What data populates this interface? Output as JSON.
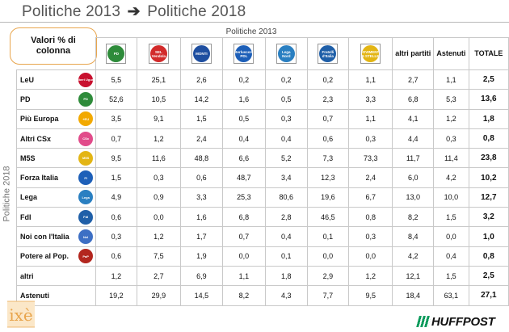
{
  "title": {
    "left": "Politiche 2013",
    "arrow": "➔",
    "right": "Politiche 2018"
  },
  "header_box": "Valori % di colonna",
  "column_group_label": "Politiche 2013",
  "side_label": "Politiche 2018",
  "columns": [
    {
      "key": "pd",
      "logo_text": "PD",
      "color": "#2e8b3a"
    },
    {
      "key": "sel",
      "logo_text": "SEL Vendola",
      "color": "#d22b2b"
    },
    {
      "key": "montl",
      "logo_text": "MONTI",
      "color": "#1f4fa0"
    },
    {
      "key": "pdl",
      "logo_text": "Berlusconi PDL",
      "color": "#1d5fb8"
    },
    {
      "key": "lega",
      "logo_text": "Lega Nord",
      "color": "#2a7fc1"
    },
    {
      "key": "fdi",
      "logo_text": "Fratelli d'Italia",
      "color": "#1f5fa8"
    },
    {
      "key": "m5s",
      "logo_text": "MOVIMENTO 5 STELLE",
      "color": "#e3b514"
    },
    {
      "key": "altri",
      "label": "altri partiti"
    },
    {
      "key": "astenuti",
      "label": "Astenuti"
    },
    {
      "key": "totale",
      "label": "TOTALE"
    }
  ],
  "chart_data": {
    "type": "table",
    "title": "Politiche 2013 ➔ Politiche 2018",
    "row_axis_label": "Politiche 2018",
    "column_axis_label": "Politiche 2013",
    "unit": "Valori % di colonna",
    "columns": [
      "PD",
      "SEL",
      "Scelta Civica (Monti)",
      "PDL",
      "Lega Nord",
      "Fratelli d'Italia",
      "M5S",
      "altri partiti",
      "Astenuti",
      "TOTALE"
    ],
    "rows": [
      {
        "label": "LeU",
        "logo_color": "#c8102e",
        "logo_text": "Liberi Uguali",
        "values": [
          "5,5",
          "25,1",
          "2,6",
          "0,2",
          "0,2",
          "0,2",
          "1,1",
          "2,7",
          "1,1",
          "2,5"
        ]
      },
      {
        "label": "PD",
        "logo_color": "#2e8b3a",
        "logo_text": "PD",
        "values": [
          "52,6",
          "10,5",
          "14,2",
          "1,6",
          "0,5",
          "2,3",
          "3,3",
          "6,8",
          "5,3",
          "13,6"
        ]
      },
      {
        "label": "Più Europa",
        "logo_color": "#f2a900",
        "logo_text": "+EU",
        "values": [
          "3,5",
          "9,1",
          "1,5",
          "0,5",
          "0,3",
          "0,7",
          "1,1",
          "4,1",
          "1,2",
          "1,8"
        ]
      },
      {
        "label": "Altri CSx",
        "logo_color": "#e14b8a",
        "logo_text": "CSx",
        "values": [
          "0,7",
          "1,2",
          "2,4",
          "0,4",
          "0,4",
          "0,6",
          "0,3",
          "4,4",
          "0,3",
          "0,8"
        ]
      },
      {
        "label": "M5S",
        "logo_color": "#e3b514",
        "logo_text": "M5S",
        "values": [
          "9,5",
          "11,6",
          "48,8",
          "6,6",
          "5,2",
          "7,3",
          "73,3",
          "11,7",
          "11,4",
          "23,8"
        ]
      },
      {
        "label": "Forza Italia",
        "logo_color": "#1d5fb8",
        "logo_text": "FI",
        "values": [
          "1,5",
          "0,3",
          "0,6",
          "48,7",
          "3,4",
          "12,3",
          "2,4",
          "6,0",
          "4,2",
          "10,2"
        ]
      },
      {
        "label": "Lega",
        "logo_color": "#2a7fc1",
        "logo_text": "Lega",
        "values": [
          "4,9",
          "0,9",
          "3,3",
          "25,3",
          "80,6",
          "19,6",
          "6,7",
          "13,0",
          "10,0",
          "12,7"
        ]
      },
      {
        "label": "FdI",
        "logo_color": "#1f5fa8",
        "logo_text": "FdI",
        "values": [
          "0,6",
          "0,0",
          "1,6",
          "6,8",
          "2,8",
          "46,5",
          "0,8",
          "8,2",
          "1,5",
          "3,2"
        ]
      },
      {
        "label": "Noi con l'Italia",
        "logo_color": "#3d6fc4",
        "logo_text": "NcI",
        "values": [
          "0,3",
          "1,2",
          "1,7",
          "0,7",
          "0,4",
          "0,1",
          "0,3",
          "8,4",
          "0,0",
          "1,0"
        ]
      },
      {
        "label": "Potere al Pop.",
        "logo_color": "#b3261e",
        "logo_text": "PaP",
        "values": [
          "0,6",
          "7,5",
          "1,9",
          "0,0",
          "0,1",
          "0,0",
          "0,0",
          "4,2",
          "0,4",
          "0,8"
        ]
      },
      {
        "label": "altri",
        "logo_color": "",
        "logo_text": "",
        "values": [
          "1,2",
          "2,7",
          "6,9",
          "1,1",
          "1,8",
          "2,9",
          "1,2",
          "12,1",
          "1,5",
          "2,5"
        ]
      },
      {
        "label": "Astenuti",
        "logo_color": "",
        "logo_text": "",
        "values": [
          "19,2",
          "29,9",
          "14,5",
          "8,2",
          "4,3",
          "7,7",
          "9,5",
          "18,4",
          "63,1",
          "27,1"
        ]
      }
    ]
  },
  "branding": {
    "left_logo": "ixè",
    "right_logo": "HUFFPOST",
    "right_logo_accent": "#0a9b5c",
    "left_logo_color": "#e8a54d"
  }
}
